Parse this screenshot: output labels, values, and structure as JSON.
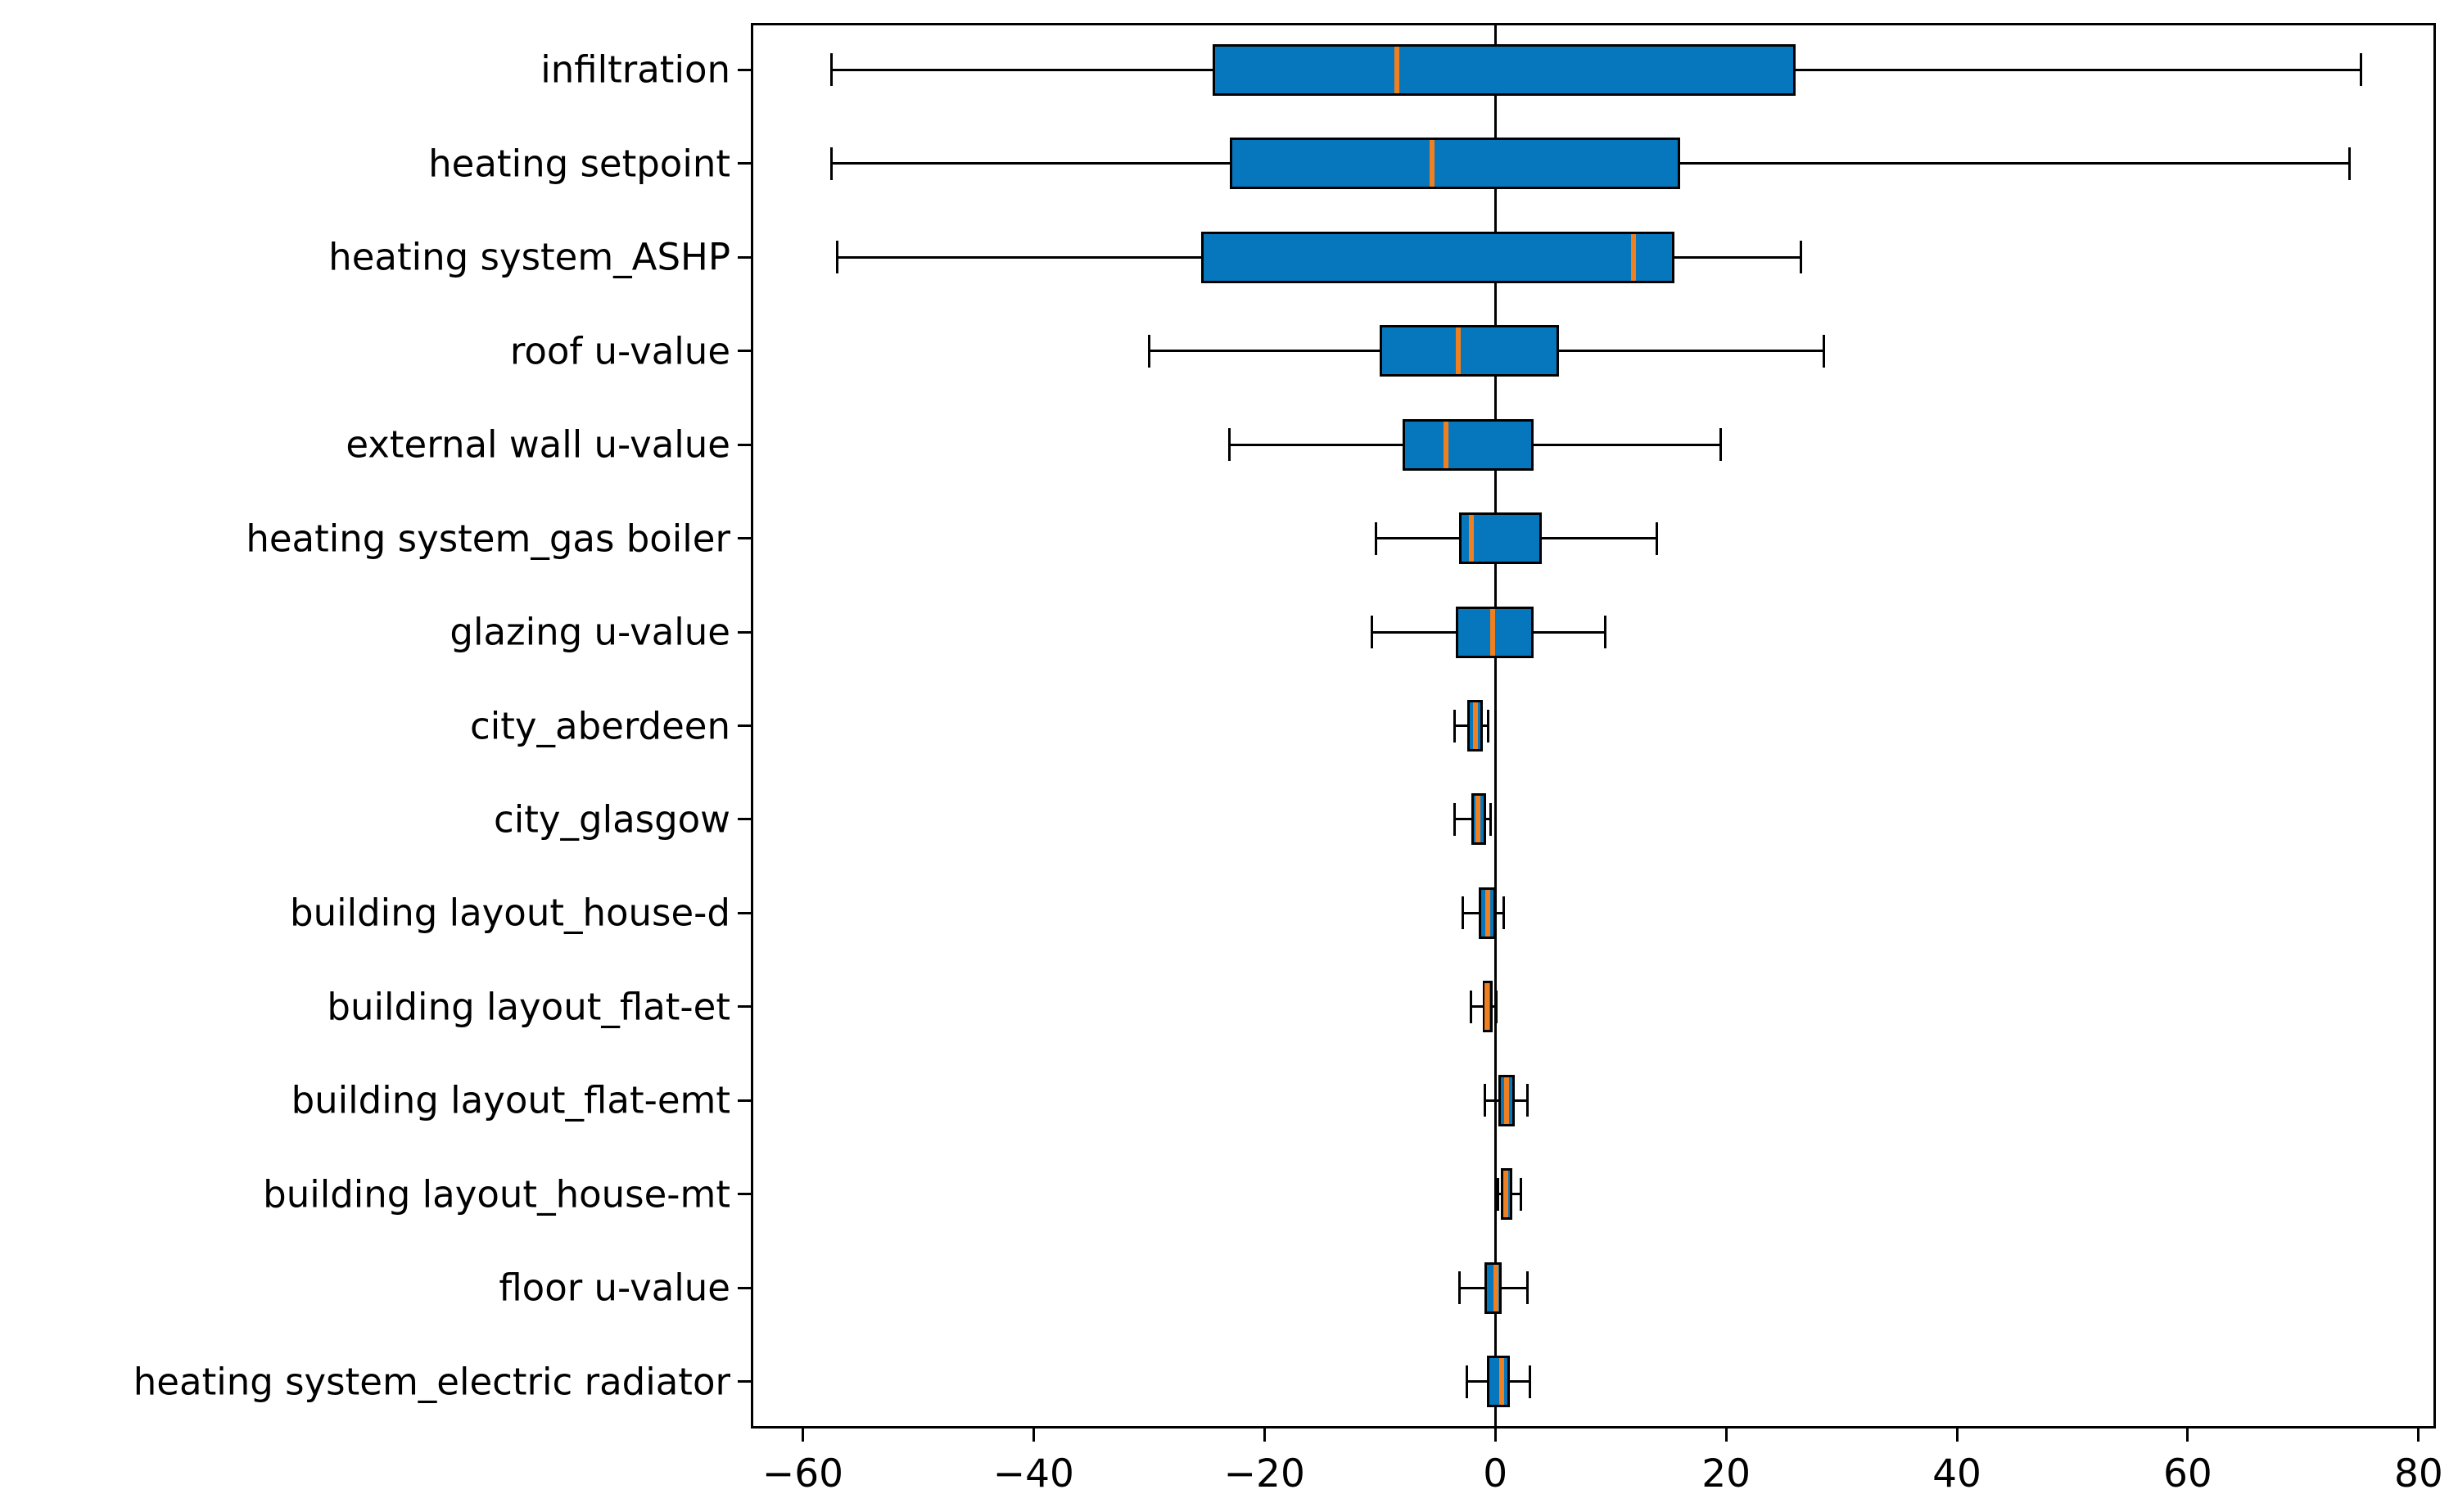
{
  "figure": {
    "background": "#ffffff",
    "box_fill_color": "#0777bd",
    "median_color": "#ef8022",
    "line_color": "#000000"
  },
  "chart_data": {
    "type": "boxplot",
    "orientation": "horizontal",
    "title": "",
    "xlabel": "",
    "ylabel": "",
    "grid": false,
    "legend": false,
    "xlim": [
      -64.5,
      81.5
    ],
    "x_ticks": [
      -60,
      -40,
      -20,
      0,
      20,
      40,
      60,
      80
    ],
    "x_tick_labels": [
      "−60",
      "−40",
      "−20",
      "0",
      "20",
      "40",
      "60",
      "80"
    ],
    "zero_reference_line": 0,
    "categories": [
      "infiltration",
      "heating setpoint",
      "heating system_ASHP",
      "roof u-value",
      "external wall u-value",
      "heating system_gas boiler",
      "glazing u-value",
      "city_aberdeen",
      "city_glasgow",
      "building layout_house-d",
      "building layout_flat-et",
      "building layout_flat-emt",
      "building layout_house-mt",
      "floor u-value",
      "heating system_electric radiator"
    ],
    "stats": [
      {
        "label": "infiltration",
        "whislo": -57.5,
        "q1": -24.5,
        "med": -8.5,
        "q3": 26.0,
        "whishi": 75.0
      },
      {
        "label": "heating setpoint",
        "whislo": -57.5,
        "q1": -23.0,
        "med": -5.5,
        "q3": 16.0,
        "whishi": 74.0
      },
      {
        "label": "heating system_ASHP",
        "whislo": -57.0,
        "q1": -25.5,
        "med": 12.0,
        "q3": 15.5,
        "whishi": 26.5
      },
      {
        "label": "roof u-value",
        "whislo": -30.0,
        "q1": -10.0,
        "med": -3.2,
        "q3": 5.5,
        "whishi": 28.5
      },
      {
        "label": "external wall u-value",
        "whislo": -23.0,
        "q1": -8.0,
        "med": -4.3,
        "q3": 3.3,
        "whishi": 19.5
      },
      {
        "label": "heating system_gas boiler",
        "whislo": -10.3,
        "q1": -3.1,
        "med": -2.1,
        "q3": 4.0,
        "whishi": 14.0
      },
      {
        "label": "glazing u-value",
        "whislo": -10.7,
        "q1": -3.4,
        "med": -0.2,
        "q3": 3.3,
        "whishi": 9.5
      },
      {
        "label": "city_aberdeen",
        "whislo": -3.5,
        "q1": -2.4,
        "med": -1.7,
        "q3": -1.1,
        "whishi": -0.6
      },
      {
        "label": "city_glasgow",
        "whislo": -3.5,
        "q1": -2.1,
        "med": -1.5,
        "q3": -0.8,
        "whishi": -0.4
      },
      {
        "label": "building layout_house-d",
        "whislo": -2.8,
        "q1": -1.4,
        "med": -0.65,
        "q3": 0.05,
        "whishi": 0.7
      },
      {
        "label": "building layout_flat-et",
        "whislo": -2.1,
        "q1": -1.1,
        "med": -0.7,
        "q3": -0.2,
        "whishi": 0.1
      },
      {
        "label": "building layout_flat-emt",
        "whislo": -0.9,
        "q1": 0.3,
        "med": 1.0,
        "q3": 1.7,
        "whishi": 2.8
      },
      {
        "label": "building layout_house-mt",
        "whislo": 0.2,
        "q1": 0.45,
        "med": 0.9,
        "q3": 1.5,
        "whishi": 2.2
      },
      {
        "label": "floor u-value",
        "whislo": -3.1,
        "q1": -0.9,
        "med": 0.05,
        "q3": 0.55,
        "whishi": 2.8
      },
      {
        "label": "heating system_electric radiator",
        "whislo": -2.45,
        "q1": -0.75,
        "med": 0.55,
        "q3": 1.25,
        "whishi": 3.0
      }
    ]
  }
}
